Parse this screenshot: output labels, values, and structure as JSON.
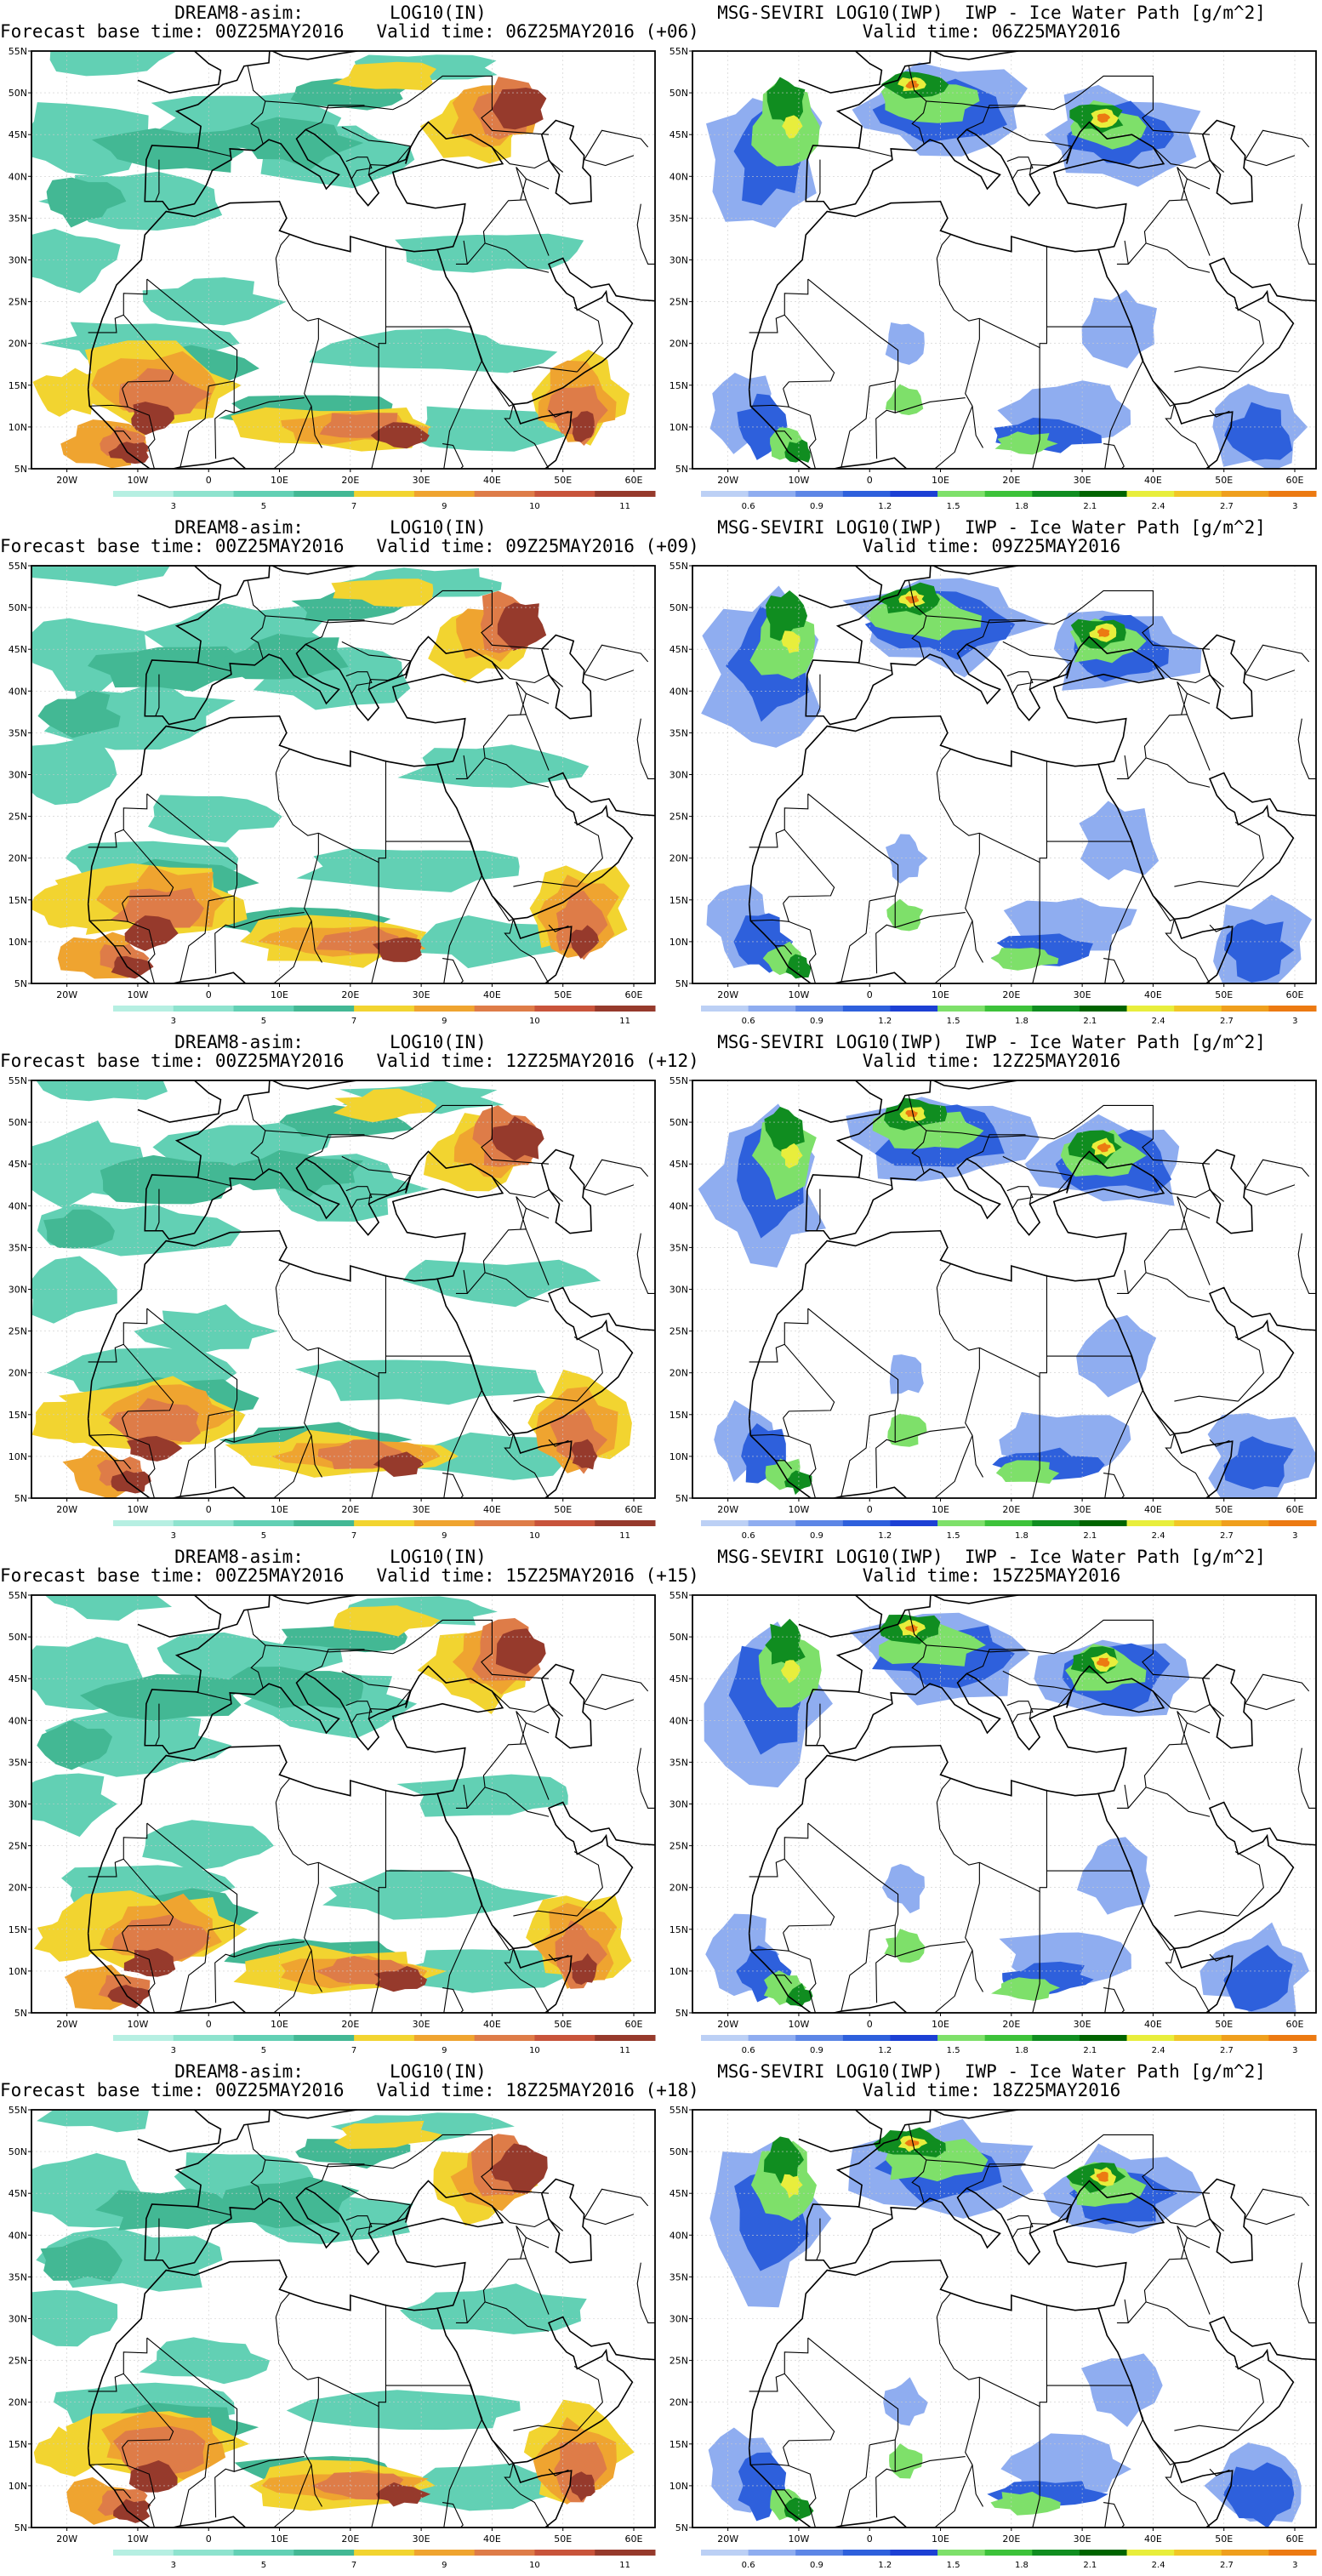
{
  "panels": [
    {
      "side": "left",
      "title1": "DREAM8-asim:        LOG10(IN)",
      "title2": "Forecast base time: 00Z25MAY2016   Valid time: 06Z25MAY2016 (+06)"
    },
    {
      "side": "right",
      "title1": "MSG-SEVIRI LOG10(IWP)  IWP - Ice Water Path [g/m^2]",
      "title2": "Valid time: 06Z25MAY2016"
    },
    {
      "side": "left",
      "title1": "DREAM8-asim:        LOG10(IN)",
      "title2": "Forecast base time: 00Z25MAY2016   Valid time: 09Z25MAY2016 (+09)"
    },
    {
      "side": "right",
      "title1": "MSG-SEVIRI LOG10(IWP)  IWP - Ice Water Path [g/m^2]",
      "title2": "Valid time: 09Z25MAY2016"
    },
    {
      "side": "left",
      "title1": "DREAM8-asim:        LOG10(IN)",
      "title2": "Forecast base time: 00Z25MAY2016   Valid time: 12Z25MAY2016 (+12)"
    },
    {
      "side": "right",
      "title1": "MSG-SEVIRI LOG10(IWP)  IWP - Ice Water Path [g/m^2]",
      "title2": "Valid time: 12Z25MAY2016"
    },
    {
      "side": "left",
      "title1": "DREAM8-asim:        LOG10(IN)",
      "title2": "Forecast base time: 00Z25MAY2016   Valid time: 15Z25MAY2016 (+15)"
    },
    {
      "side": "right",
      "title1": "MSG-SEVIRI LOG10(IWP)  IWP - Ice Water Path [g/m^2]",
      "title2": "Valid time: 15Z25MAY2016"
    },
    {
      "side": "left",
      "title1": "DREAM8-asim:        LOG10(IN)",
      "title2": "Forecast base time: 00Z25MAY2016   Valid time: 18Z25MAY2016 (+18)"
    },
    {
      "side": "right",
      "title1": "MSG-SEVIRI LOG10(IWP)  IWP - Ice Water Path [g/m^2]",
      "title2": "Valid time: 18Z25MAY2016"
    }
  ],
  "axes": {
    "lat_labels": [
      "5N",
      "10N",
      "15N",
      "20N",
      "25N",
      "30N",
      "35N",
      "40N",
      "45N",
      "50N",
      "55N"
    ],
    "lon_labels": [
      "20W",
      "10W",
      "0",
      "10E",
      "20E",
      "30E",
      "40E",
      "50E",
      "60E"
    ]
  },
  "colorbars": {
    "left": {
      "labels": [
        "3",
        "5",
        "7",
        "9",
        "10",
        "11"
      ],
      "colors": [
        "#b6efe2",
        "#8ee3ce",
        "#62d0b4",
        "#43b894",
        "#f2d430",
        "#efa430",
        "#de7c48",
        "#c8543b",
        "#963a2c"
      ]
    },
    "right": {
      "labels": [
        "0.6",
        "0.9",
        "1.2",
        "1.5",
        "1.8",
        "2.1",
        "2.4",
        "2.7",
        "3"
      ],
      "colors": [
        "#bcd0f5",
        "#8fadf0",
        "#5d86e6",
        "#2e60dc",
        "#1c40d4",
        "#7ee06a",
        "#3dc23a",
        "#108d20",
        "#006400",
        "#e8ee3c",
        "#f1c727",
        "#ef9f1d",
        "#ec7a12"
      ]
    }
  },
  "colors": {
    "dream_levels": [
      "#62d0b4",
      "#43b894",
      "#f2d430",
      "#efa430",
      "#de7c48",
      "#963a2c"
    ],
    "iwp_levels": [
      "#8fadf0",
      "#2e60dc",
      "#7ee06a",
      "#108d20",
      "#e8ee3c",
      "#ec7a12"
    ]
  }
}
